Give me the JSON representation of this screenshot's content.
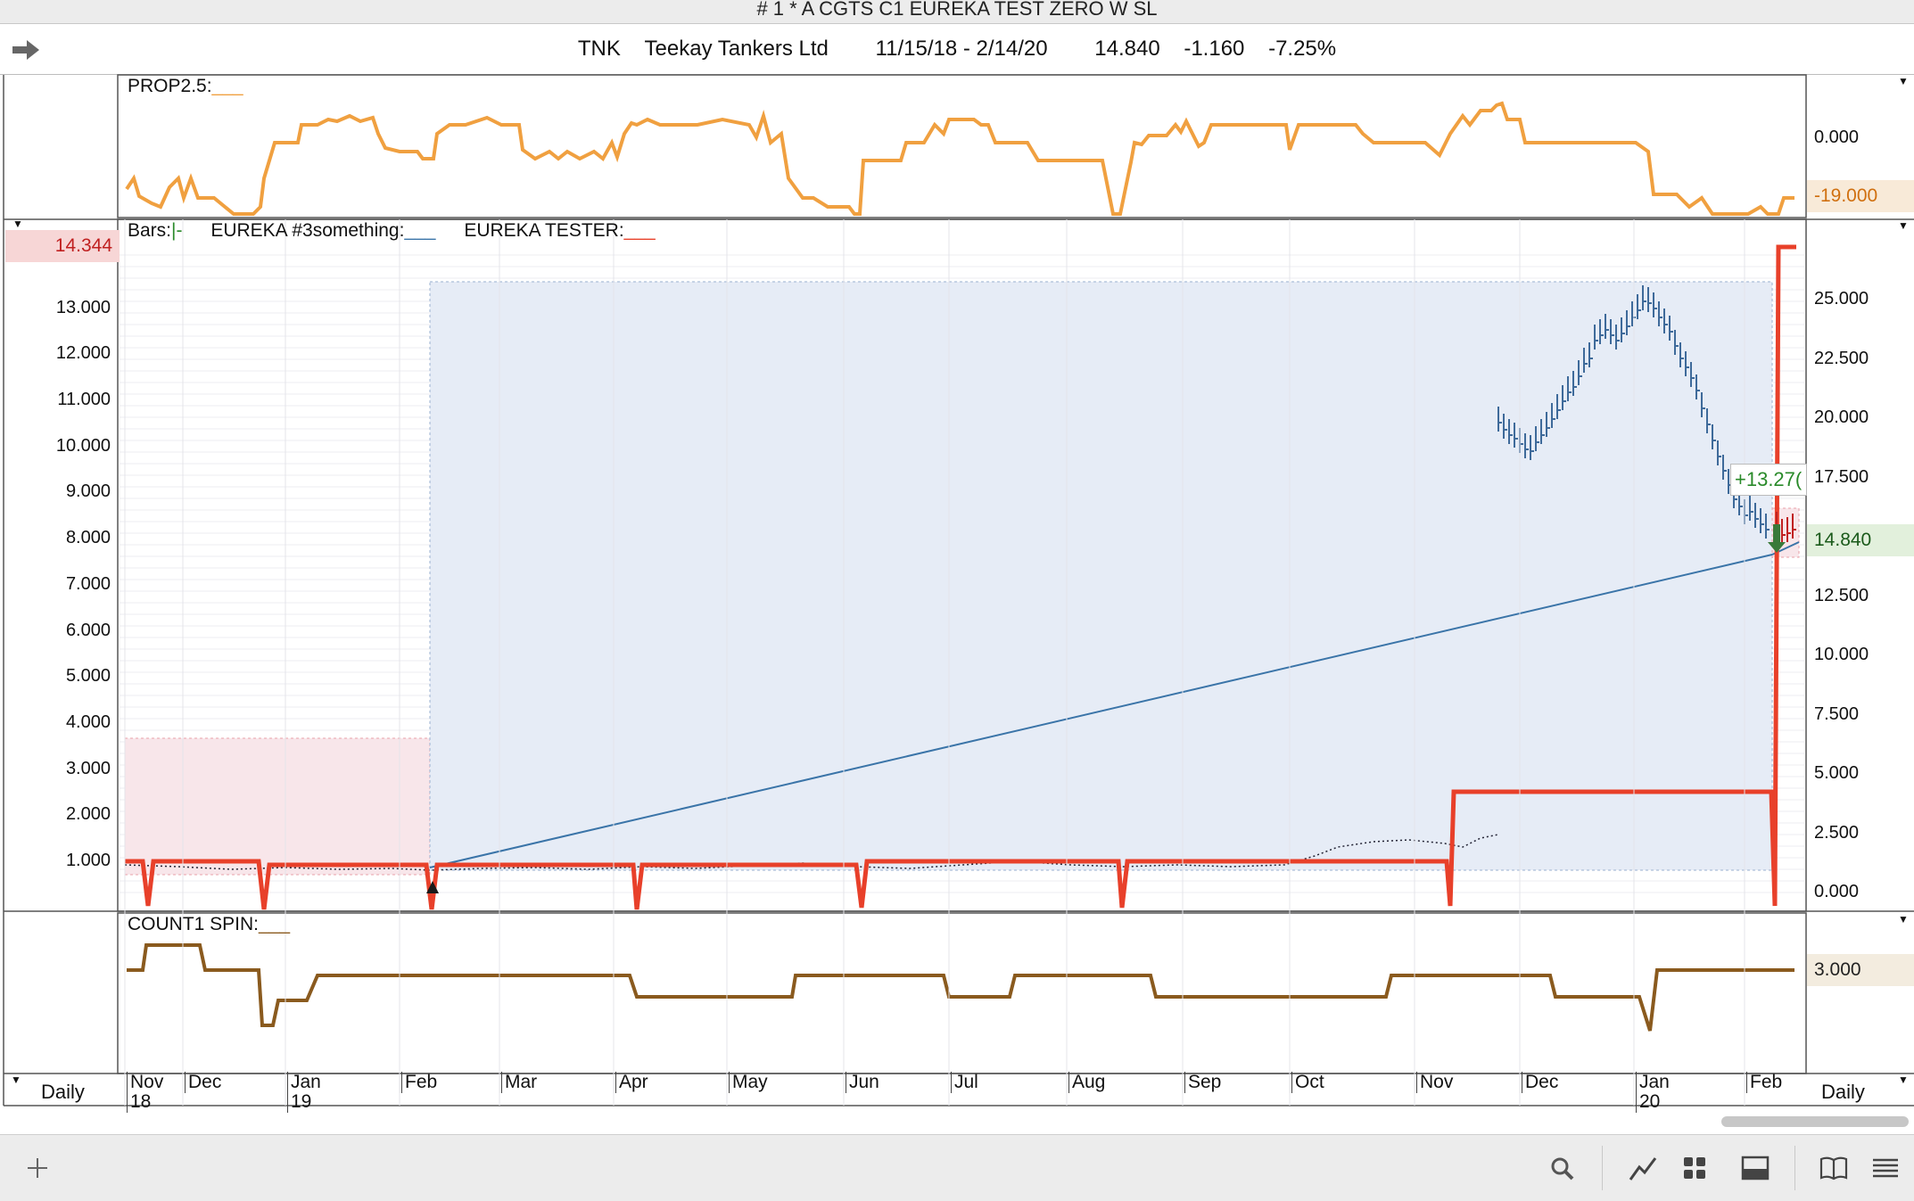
{
  "window": {
    "title": "# 1 * A CGTS  C1 EUREKA TEST  ZERO W SL"
  },
  "header": {
    "symbol": "TNK",
    "name": "Teekay Tankers Ltd",
    "range": "11/15/18 - 2/14/20",
    "last": "14.840",
    "change": "-1.160",
    "change_pct": "-7.25%"
  },
  "panes": {
    "prop": {
      "label": "PROP2.5:",
      "right_ticks": [
        "0.000"
      ],
      "value_tag": "-19.000"
    },
    "main": {
      "legend": {
        "bars": "Bars:",
        "series1": "EUREKA #3something:",
        "series2": "EUREKA TESTER:"
      },
      "left_tag": "14.344",
      "left_ticks": [
        "13.000",
        "12.000",
        "11.000",
        "10.000",
        "9.000",
        "8.000",
        "7.000",
        "6.000",
        "5.000",
        "4.000",
        "3.000",
        "2.000",
        "1.000"
      ],
      "right_ticks": [
        "25.000",
        "22.500",
        "20.000",
        "17.500",
        "12.500",
        "10.000",
        "7.500",
        "5.000",
        "2.500",
        "0.000"
      ],
      "price_tag": "14.840",
      "trade_label": "+13.27("
    },
    "count": {
      "label": "COUNT1 SPIN:",
      "value_tag": "3.000"
    }
  },
  "time_axis": {
    "months": [
      "Nov",
      "Dec",
      "Jan",
      "Feb",
      "Mar",
      "Apr",
      "May",
      "Jun",
      "Jul",
      "Aug",
      "Sep",
      "Oct",
      "Nov",
      "Dec",
      "Jan",
      "Feb"
    ],
    "years": [
      "18",
      "19",
      "20"
    ],
    "left_period": "Daily",
    "right_period": "Daily"
  },
  "colors": {
    "prop_line": "#f0a040",
    "tester_line": "#e8402a",
    "eureka_line": "#3a74a8",
    "count_line": "#8a5a1e",
    "price_bars": "#3e6a9a",
    "region_fill": "#e6ecf6",
    "loss_fill": "#f8e6ea"
  },
  "toolbar": {
    "icons": [
      "plus-icon",
      "search-icon",
      "draw-line-icon",
      "grid-icon",
      "panel-icon",
      "book-icon",
      "list-icon"
    ]
  }
}
